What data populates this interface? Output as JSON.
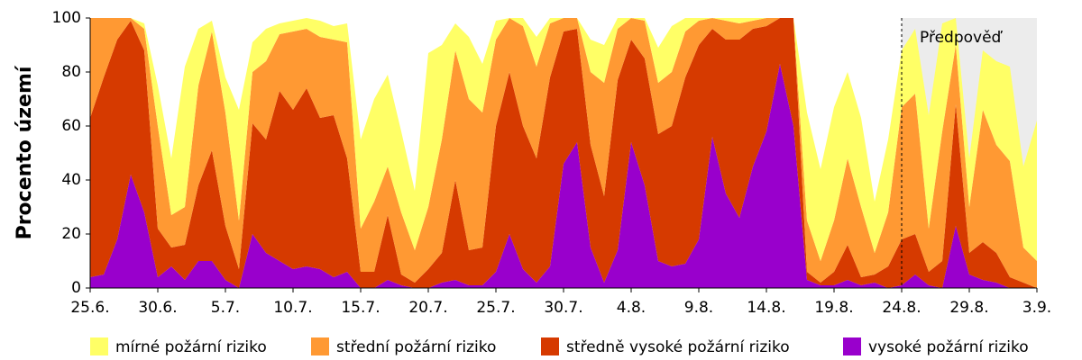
{
  "chart_data": {
    "type": "stacked_area",
    "y_label": "Procento území",
    "categories": [
      "25.6.",
      null,
      null,
      null,
      null,
      "30.6.",
      null,
      null,
      null,
      null,
      "5.7.",
      null,
      null,
      null,
      null,
      "10.7.",
      null,
      null,
      null,
      null,
      "15.7.",
      null,
      null,
      null,
      null,
      "20.7.",
      null,
      null,
      null,
      null,
      "25.7.",
      null,
      null,
      null,
      null,
      "30.7.",
      null,
      null,
      null,
      null,
      "4.8.",
      null,
      null,
      null,
      null,
      "9.8.",
      null,
      null,
      null,
      null,
      "14.8.",
      null,
      null,
      null,
      null,
      "19.8.",
      null,
      null,
      null,
      null,
      "24.8.",
      null,
      null,
      null,
      null,
      "29.8.",
      null,
      null,
      null,
      null,
      "3.9."
    ],
    "ylim": [
      0,
      100
    ],
    "yticks": [
      0,
      20,
      40,
      60,
      80,
      100
    ],
    "forecast_label": "Předpověď",
    "forecast_start": "24.8.",
    "series": [
      {
        "name": "mírné požární riziko",
        "color": "#ffff66",
        "values": [
          0,
          0,
          0,
          0,
          2,
          15,
          21,
          52,
          21,
          4,
          13,
          41,
          11,
          12,
          4,
          4,
          4,
          6,
          5,
          7,
          33,
          38,
          34,
          30,
          22,
          57,
          35,
          10,
          23,
          18,
          7,
          0,
          3,
          11,
          2,
          0,
          0,
          12,
          14,
          4,
          0,
          1,
          13,
          17,
          5,
          1,
          0,
          1,
          2,
          1,
          0,
          0,
          0,
          40,
          34,
          42,
          32,
          33,
          19,
          27,
          21,
          24,
          42,
          40,
          10,
          18,
          22,
          31,
          35,
          30,
          52
        ]
      },
      {
        "name": "střední požární riziko",
        "color": "#ff9933",
        "values": [
          37,
          22,
          8,
          1,
          8,
          38,
          12,
          14,
          37,
          44,
          42,
          18,
          19,
          29,
          21,
          29,
          22,
          30,
          28,
          43,
          16,
          26,
          18,
          23,
          12,
          23,
          42,
          48,
          56,
          50,
          32,
          20,
          37,
          34,
          20,
          5,
          4,
          27,
          42,
          19,
          8,
          14,
          19,
          20,
          17,
          9,
          4,
          7,
          6,
          3,
          3,
          0,
          0,
          19,
          8,
          19,
          32,
          26,
          8,
          20,
          49,
          52,
          16,
          48,
          22,
          17,
          49,
          40,
          43,
          13,
          10
        ]
      },
      {
        "name": "středně vysoké požární riziko",
        "color": "#d63a00",
        "values": [
          59,
          73,
          74,
          57,
          60,
          18,
          7,
          13,
          28,
          41,
          20,
          7,
          41,
          42,
          63,
          59,
          66,
          56,
          60,
          42,
          6,
          6,
          24,
          4,
          2,
          7,
          11,
          37,
          13,
          14,
          54,
          60,
          53,
          46,
          70,
          49,
          42,
          38,
          32,
          63,
          38,
          47,
          47,
          52,
          69,
          72,
          40,
          57,
          66,
          51,
          39,
          17,
          40,
          3,
          1,
          5,
          13,
          3,
          3,
          8,
          17,
          15,
          5,
          10,
          45,
          8,
          14,
          11,
          4,
          2,
          0
        ]
      },
      {
        "name": "vysoké požární riziko",
        "color": "#9900cc",
        "values": [
          4,
          5,
          18,
          42,
          28,
          4,
          8,
          3,
          10,
          10,
          3,
          0,
          20,
          13,
          10,
          7,
          8,
          7,
          4,
          6,
          0,
          0,
          3,
          1,
          0,
          0,
          2,
          3,
          1,
          1,
          6,
          20,
          7,
          2,
          8,
          46,
          54,
          15,
          2,
          14,
          54,
          38,
          10,
          8,
          9,
          18,
          56,
          35,
          26,
          45,
          58,
          83,
          60,
          3,
          1,
          1,
          3,
          1,
          2,
          0,
          1,
          5,
          1,
          0,
          23,
          5,
          3,
          2,
          0,
          0,
          0
        ]
      }
    ]
  }
}
